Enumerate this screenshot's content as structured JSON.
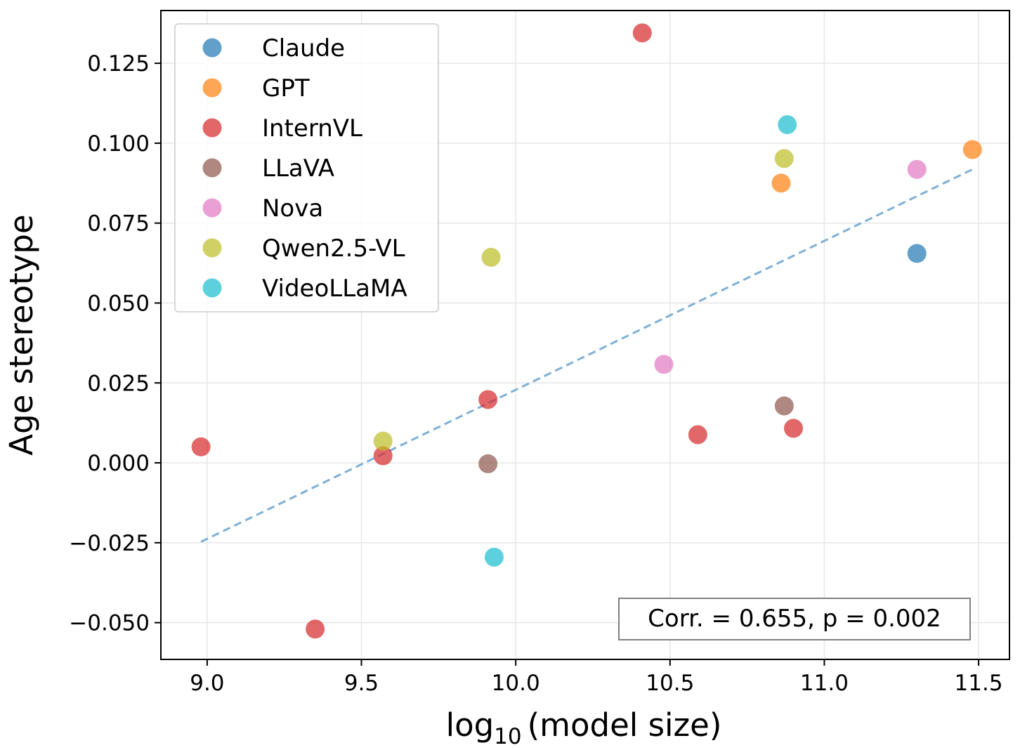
{
  "chart_data": {
    "type": "scatter",
    "title": "",
    "xlabel_main": "log",
    "xlabel_sub": "10",
    "xlabel_rest": "(model size)",
    "ylabel": "Age stereotype",
    "xlim": [
      8.85,
      11.6
    ],
    "ylim": [
      -0.0615,
      0.1415
    ],
    "xticks": [
      9.0,
      9.5,
      10.0,
      10.5,
      11.0,
      11.5
    ],
    "xtick_labels": [
      "9.0",
      "9.5",
      "10.0",
      "10.5",
      "11.0",
      "11.5"
    ],
    "yticks": [
      -0.05,
      -0.025,
      0.0,
      0.025,
      0.05,
      0.075,
      0.1,
      0.125
    ],
    "ytick_labels": [
      "−0.050",
      "−0.025",
      "0.000",
      "0.025",
      "0.050",
      "0.075",
      "0.100",
      "0.125"
    ],
    "grid": true,
    "legend_position": "top-left",
    "series": [
      {
        "name": "Claude",
        "color": "#1f77b4",
        "points": [
          [
            11.3,
            0.0655
          ]
        ]
      },
      {
        "name": "GPT",
        "color": "#ff7f0e",
        "points": [
          [
            10.86,
            0.0875
          ],
          [
            11.48,
            0.098
          ]
        ]
      },
      {
        "name": "InternVL",
        "color": "#d62728",
        "points": [
          [
            8.98,
            0.005
          ],
          [
            9.35,
            -0.052
          ],
          [
            9.57,
            0.0022
          ],
          [
            9.91,
            0.0198
          ],
          [
            10.41,
            0.1345
          ],
          [
            10.59,
            0.0088
          ],
          [
            10.9,
            0.0108
          ]
        ]
      },
      {
        "name": "LLaVA",
        "color": "#8c564b",
        "points": [
          [
            9.91,
            -0.0003
          ],
          [
            10.87,
            0.0178
          ]
        ]
      },
      {
        "name": "Nova",
        "color": "#e377c2",
        "points": [
          [
            10.48,
            0.0308
          ],
          [
            11.3,
            0.0918
          ]
        ]
      },
      {
        "name": "Qwen2.5-VL",
        "color": "#bcbd22",
        "points": [
          [
            9.57,
            0.0068
          ],
          [
            9.92,
            0.0643
          ],
          [
            10.87,
            0.0952
          ]
        ]
      },
      {
        "name": "VideoLLaMA",
        "color": "#17becf",
        "points": [
          [
            9.93,
            -0.0295
          ],
          [
            10.88,
            0.1058
          ]
        ]
      }
    ],
    "fit_line": {
      "color": "#7fb0d6",
      "style": "dashed",
      "x": [
        8.98,
        11.48
      ],
      "y": [
        -0.0247,
        0.0918
      ]
    },
    "annotation": "Corr. = 0.655, p = 0.002"
  }
}
